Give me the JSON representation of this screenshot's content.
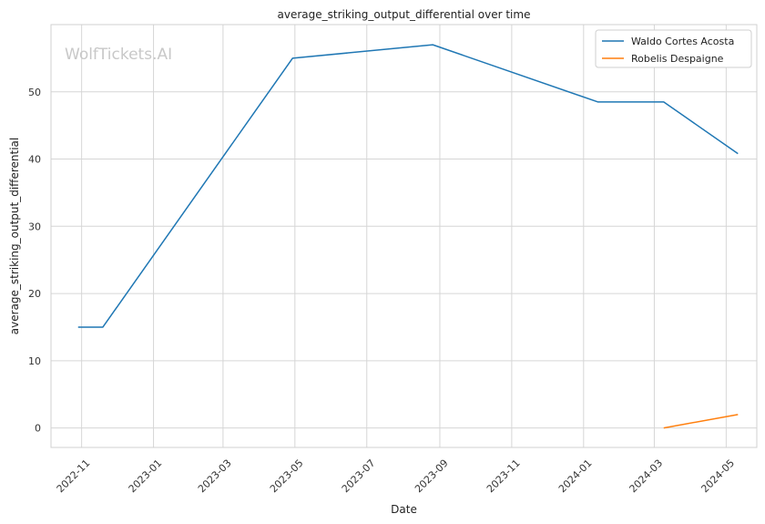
{
  "watermark": "WolfTickets.AI",
  "chart_data": {
    "type": "line",
    "title": "average_striking_output_differential over time",
    "xlabel": "Date",
    "ylabel": "average_striking_output_differential",
    "x_axis_type": "date",
    "xlim": [
      "2022-10-06",
      "2024-05-27"
    ],
    "ylim": [
      -2.9,
      60
    ],
    "x_ticks": [
      {
        "date": "2022-11-01",
        "label": "2022-11"
      },
      {
        "date": "2023-01-01",
        "label": "2023-01"
      },
      {
        "date": "2023-03-01",
        "label": "2023-03"
      },
      {
        "date": "2023-05-01",
        "label": "2023-05"
      },
      {
        "date": "2023-07-01",
        "label": "2023-07"
      },
      {
        "date": "2023-09-01",
        "label": "2023-09"
      },
      {
        "date": "2023-11-01",
        "label": "2023-11"
      },
      {
        "date": "2024-01-01",
        "label": "2024-01"
      },
      {
        "date": "2024-03-01",
        "label": "2024-03"
      },
      {
        "date": "2024-05-01",
        "label": "2024-05"
      }
    ],
    "y_ticks": [
      {
        "value": 0,
        "label": "0"
      },
      {
        "value": 10,
        "label": "10"
      },
      {
        "value": 20,
        "label": "20"
      },
      {
        "value": 30,
        "label": "30"
      },
      {
        "value": 40,
        "label": "40"
      },
      {
        "value": 50,
        "label": "50"
      }
    ],
    "grid": true,
    "legend_position": "top-right",
    "series": [
      {
        "name": "Waldo Cortes Acosta",
        "color": "#1f77b4",
        "points": [
          {
            "x": "2022-10-29",
            "y": 15
          },
          {
            "x": "2022-11-19",
            "y": 15
          },
          {
            "x": "2023-04-29",
            "y": 55
          },
          {
            "x": "2023-08-26",
            "y": 57
          },
          {
            "x": "2024-01-13",
            "y": 48.5
          },
          {
            "x": "2024-03-09",
            "y": 48.5
          },
          {
            "x": "2024-05-11",
            "y": 40.8
          }
        ]
      },
      {
        "name": "Robelis Despaigne",
        "color": "#ff7f0e",
        "points": [
          {
            "x": "2024-03-09",
            "y": 0
          },
          {
            "x": "2024-05-11",
            "y": 2
          }
        ]
      }
    ]
  }
}
